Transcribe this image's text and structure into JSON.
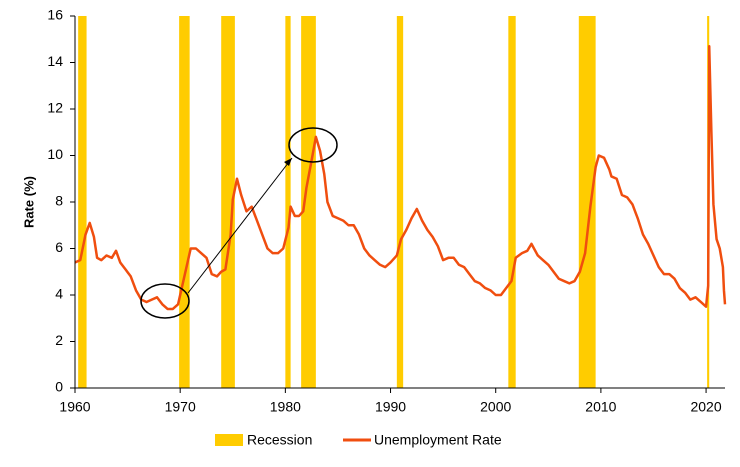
{
  "chart_data": {
    "type": "line",
    "y_label": "Rate (%)",
    "xlim": [
      1960,
      2021.8
    ],
    "xticks": [
      1960,
      1970,
      1980,
      1990,
      2000,
      2010,
      2020
    ],
    "ylim": [
      0,
      16
    ],
    "yticks": [
      0,
      2,
      4,
      6,
      8,
      10,
      12,
      14,
      16
    ],
    "bands": {
      "name": "Recession",
      "color": "#ffcc00",
      "ranges": [
        [
          1960.3,
          1961.1
        ],
        [
          1969.9,
          1970.9
        ],
        [
          1973.9,
          1975.2
        ],
        [
          1980.0,
          1980.5
        ],
        [
          1981.5,
          1982.9
        ],
        [
          1990.6,
          1991.2
        ],
        [
          2001.2,
          2001.9
        ],
        [
          2007.9,
          2009.5
        ],
        [
          2020.1,
          2020.3
        ]
      ]
    },
    "x": [
      1960.0,
      1960.5,
      1961.0,
      1961.4,
      1961.8,
      1962.1,
      1962.5,
      1963.0,
      1963.5,
      1963.9,
      1964.3,
      1964.8,
      1965.3,
      1965.8,
      1966.3,
      1966.8,
      1967.3,
      1967.8,
      1968.3,
      1968.8,
      1969.3,
      1969.8,
      1970.3,
      1970.7,
      1971.0,
      1971.5,
      1972.0,
      1972.5,
      1973.0,
      1973.5,
      1973.9,
      1974.3,
      1974.8,
      1975.0,
      1975.4,
      1975.8,
      1976.3,
      1976.8,
      1977.3,
      1977.8,
      1978.3,
      1978.8,
      1979.3,
      1979.8,
      1980.3,
      1980.5,
      1980.9,
      1981.3,
      1981.7,
      1982.0,
      1982.5,
      1982.9,
      1983.3,
      1983.7,
      1984.0,
      1984.5,
      1985.0,
      1985.5,
      1986.0,
      1986.5,
      1987.0,
      1987.5,
      1988.0,
      1988.5,
      1989.0,
      1989.5,
      1990.0,
      1990.6,
      1991.0,
      1991.5,
      1992.0,
      1992.5,
      1993.0,
      1993.5,
      1994.0,
      1994.5,
      1995.0,
      1995.5,
      1996.0,
      1996.5,
      1997.0,
      1997.5,
      1998.0,
      1998.5,
      1999.0,
      1999.5,
      2000.0,
      2000.5,
      2001.0,
      2001.5,
      2001.9,
      2002.5,
      2003.0,
      2003.4,
      2004.0,
      2004.5,
      2005.0,
      2005.5,
      2006.0,
      2006.5,
      2007.0,
      2007.5,
      2008.0,
      2008.5,
      2009.0,
      2009.5,
      2009.8,
      2010.3,
      2010.8,
      2011.0,
      2011.5,
      2012.0,
      2012.5,
      2013.0,
      2013.5,
      2014.0,
      2014.5,
      2015.0,
      2015.5,
      2016.0,
      2016.5,
      2017.0,
      2017.5,
      2018.0,
      2018.5,
      2019.0,
      2019.5,
      2020.0,
      2020.2,
      2020.3,
      2020.5,
      2020.7,
      2021.0,
      2021.3,
      2021.6,
      2021.7,
      2021.8
    ],
    "series": [
      {
        "name": "Unemployment Rate",
        "color": "#f04e0f",
        "values": [
          5.4,
          5.5,
          6.6,
          7.1,
          6.5,
          5.6,
          5.5,
          5.7,
          5.6,
          5.9,
          5.4,
          5.1,
          4.8,
          4.2,
          3.8,
          3.7,
          3.8,
          3.9,
          3.6,
          3.4,
          3.4,
          3.6,
          4.6,
          5.4,
          6.0,
          6.0,
          5.8,
          5.6,
          4.9,
          4.8,
          5.0,
          5.1,
          6.6,
          8.1,
          9.0,
          8.3,
          7.6,
          7.8,
          7.2,
          6.6,
          6.0,
          5.8,
          5.8,
          6.0,
          6.9,
          7.8,
          7.4,
          7.4,
          7.6,
          8.6,
          9.8,
          10.8,
          10.2,
          9.2,
          8.0,
          7.4,
          7.3,
          7.2,
          7.0,
          7.0,
          6.6,
          6.0,
          5.7,
          5.5,
          5.3,
          5.2,
          5.4,
          5.7,
          6.4,
          6.8,
          7.3,
          7.7,
          7.2,
          6.8,
          6.5,
          6.1,
          5.5,
          5.6,
          5.6,
          5.3,
          5.2,
          4.9,
          4.6,
          4.5,
          4.3,
          4.2,
          4.0,
          4.0,
          4.3,
          4.6,
          5.6,
          5.8,
          5.9,
          6.2,
          5.7,
          5.5,
          5.3,
          5.0,
          4.7,
          4.6,
          4.5,
          4.6,
          5.0,
          5.8,
          7.8,
          9.5,
          10.0,
          9.9,
          9.4,
          9.1,
          9.0,
          8.3,
          8.2,
          7.9,
          7.3,
          6.6,
          6.2,
          5.7,
          5.2,
          4.9,
          4.9,
          4.7,
          4.3,
          4.1,
          3.8,
          3.9,
          3.7,
          3.5,
          4.4,
          14.7,
          11.1,
          7.9,
          6.4,
          6.0,
          5.2,
          4.2,
          3.6
        ]
      }
    ]
  }
}
